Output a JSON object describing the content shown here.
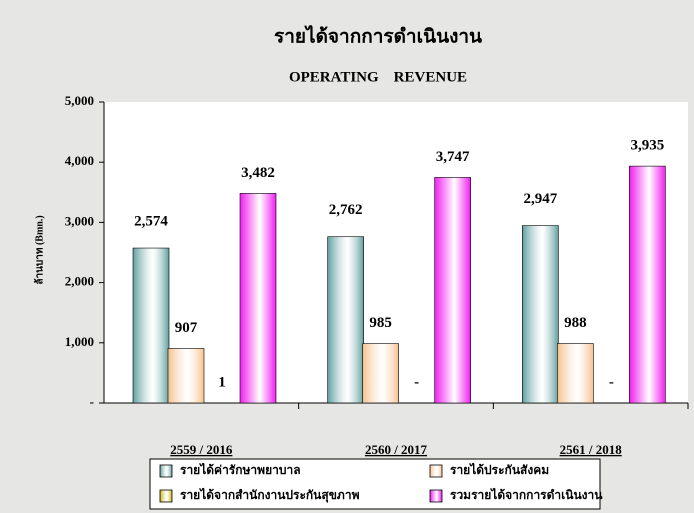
{
  "chart_data": {
    "type": "bar",
    "title": "รายได้จากการดำเนินงาน",
    "subtitle": "OPERATING    REVENUE",
    "y_label": "ล้านบาท (Bmn.)",
    "categories": [
      "2559 / 2016",
      "2560 / 2017",
      "2561 / 2018"
    ],
    "series": [
      {
        "name": "รายได้ค่ารักษาพยาบาล",
        "color": "#5e9e9e",
        "values": [
          2574,
          2762,
          2947
        ],
        "value_labels": [
          "2,574",
          "2,762",
          "2,947"
        ]
      },
      {
        "name": "รายได้ประกันสังคม",
        "color": "#f7c08c",
        "values": [
          907,
          985,
          988
        ],
        "value_labels": [
          "907",
          "985",
          "988"
        ]
      },
      {
        "name": "รายได้จากสำนักงานประกันสุขภาพ",
        "color": "#c8b000",
        "values": [
          1,
          0,
          0
        ],
        "value_labels": [
          "1",
          "-",
          "-"
        ]
      },
      {
        "name": "รวมรายได้จากการดำเนินงาน",
        "color": "#f020f0",
        "values": [
          3482,
          3747,
          3935
        ],
        "value_labels": [
          "3,482",
          "3,747",
          "3,935"
        ]
      }
    ],
    "ylim": [
      0,
      5000
    ],
    "yticks": [
      {
        "value": 0,
        "label": "-"
      },
      {
        "value": 1000,
        "label": "1,000"
      },
      {
        "value": 2000,
        "label": "2,000"
      },
      {
        "value": 3000,
        "label": "3,000"
      },
      {
        "value": 4000,
        "label": "4,000"
      },
      {
        "value": 5000,
        "label": "5,000"
      }
    ],
    "legend": "bottom"
  }
}
